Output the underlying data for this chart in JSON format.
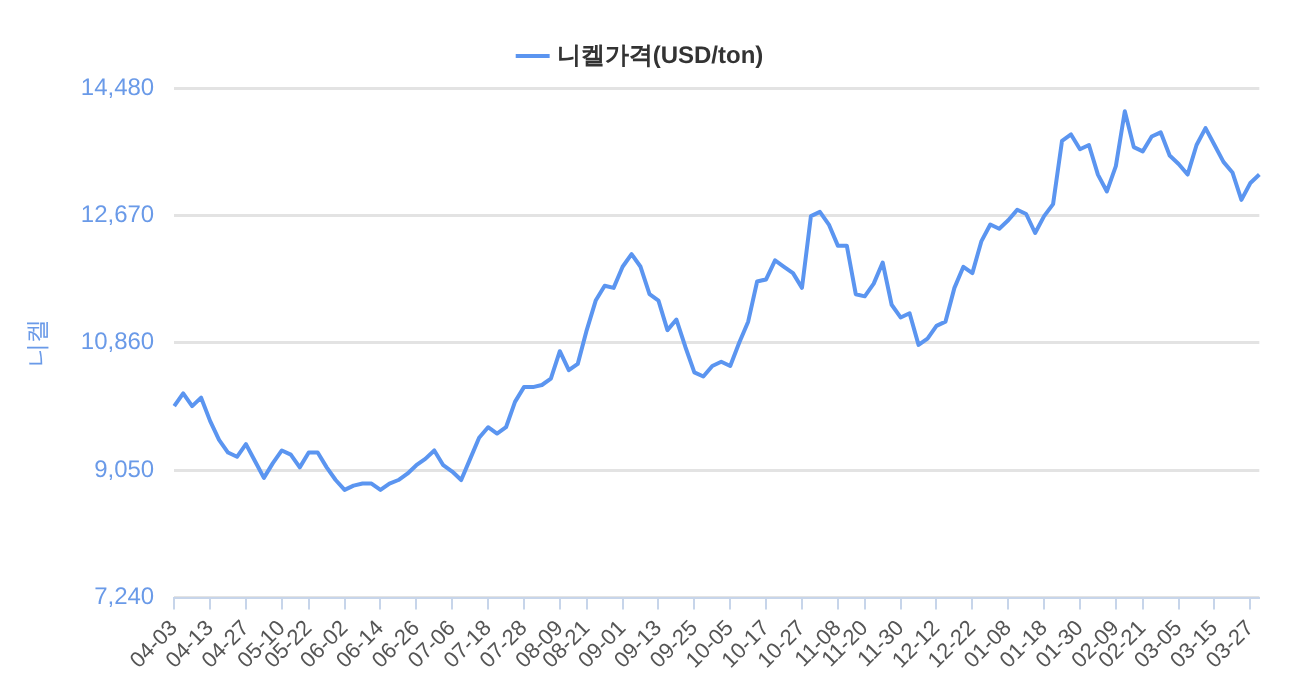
{
  "chart_data": {
    "type": "line",
    "ylabel": "니켈",
    "legend": "top",
    "grid": "y",
    "marker": "none",
    "line_style": "solid",
    "ylim": [
      7240,
      14480
    ],
    "yticks": [
      {
        "value": 7240,
        "label": "7,240"
      },
      {
        "value": 9050,
        "label": "9,050"
      },
      {
        "value": 10860,
        "label": "10,860"
      },
      {
        "value": 12670,
        "label": "12,670"
      },
      {
        "value": 14480,
        "label": "14,480"
      }
    ],
    "categories": [
      "04-03",
      null,
      null,
      null,
      "04-13",
      null,
      null,
      null,
      "04-27",
      null,
      null,
      null,
      "05-10",
      null,
      null,
      "05-22",
      null,
      null,
      null,
      "06-02",
      null,
      null,
      null,
      "06-14",
      null,
      null,
      null,
      "06-26",
      null,
      null,
      null,
      "07-06",
      null,
      null,
      null,
      "07-18",
      null,
      null,
      null,
      "07-28",
      null,
      null,
      null,
      "08-09",
      null,
      null,
      "08-21",
      null,
      null,
      null,
      "09-01",
      null,
      null,
      null,
      "09-13",
      null,
      null,
      null,
      "09-25",
      null,
      null,
      null,
      "10-05",
      null,
      null,
      null,
      "10-17",
      null,
      null,
      null,
      "10-27",
      null,
      null,
      null,
      "11-08",
      null,
      null,
      "11-20",
      null,
      null,
      null,
      "11-30",
      null,
      null,
      null,
      "12-12",
      null,
      null,
      null,
      "12-22",
      null,
      null,
      null,
      "01-08",
      null,
      null,
      null,
      "01-18",
      null,
      null,
      null,
      "01-30",
      null,
      null,
      null,
      "02-09",
      null,
      null,
      "02-21",
      null,
      null,
      null,
      "03-05",
      null,
      null,
      null,
      "03-15",
      null,
      null,
      null,
      "03-27",
      null
    ],
    "series": [
      {
        "name": "니켈가격(USD/ton)",
        "color": "#5b95f0",
        "values": [
          9960,
          10140,
          9960,
          10080,
          9750,
          9480,
          9300,
          9240,
          9420,
          9180,
          8940,
          9150,
          9330,
          9270,
          9090,
          9300,
          9300,
          9090,
          8910,
          8770,
          8830,
          8860,
          8860,
          8770,
          8860,
          8910,
          9000,
          9120,
          9210,
          9330,
          9120,
          9030,
          8910,
          9210,
          9510,
          9660,
          9570,
          9660,
          10020,
          10230,
          10230,
          10260,
          10350,
          10740,
          10470,
          10560,
          11040,
          11460,
          11670,
          11640,
          11940,
          12120,
          11940,
          11550,
          11460,
          11040,
          11190,
          10800,
          10440,
          10380,
          10530,
          10590,
          10530,
          10860,
          11160,
          11730,
          11760,
          12030,
          11940,
          11850,
          11640,
          12660,
          12720,
          12540,
          12240,
          12240,
          11550,
          11520,
          11700,
          12000,
          11400,
          11220,
          11280,
          10830,
          10920,
          11100,
          11160,
          11640,
          11940,
          11850,
          12300,
          12540,
          12480,
          12600,
          12750,
          12690,
          12420,
          12660,
          12830,
          13730,
          13820,
          13610,
          13670,
          13250,
          13010,
          13370,
          14150,
          13640,
          13580,
          13790,
          13850,
          13520,
          13400,
          13250,
          13670,
          13910,
          13670,
          13430,
          13280,
          12890,
          13130,
          13250
        ]
      }
    ]
  }
}
